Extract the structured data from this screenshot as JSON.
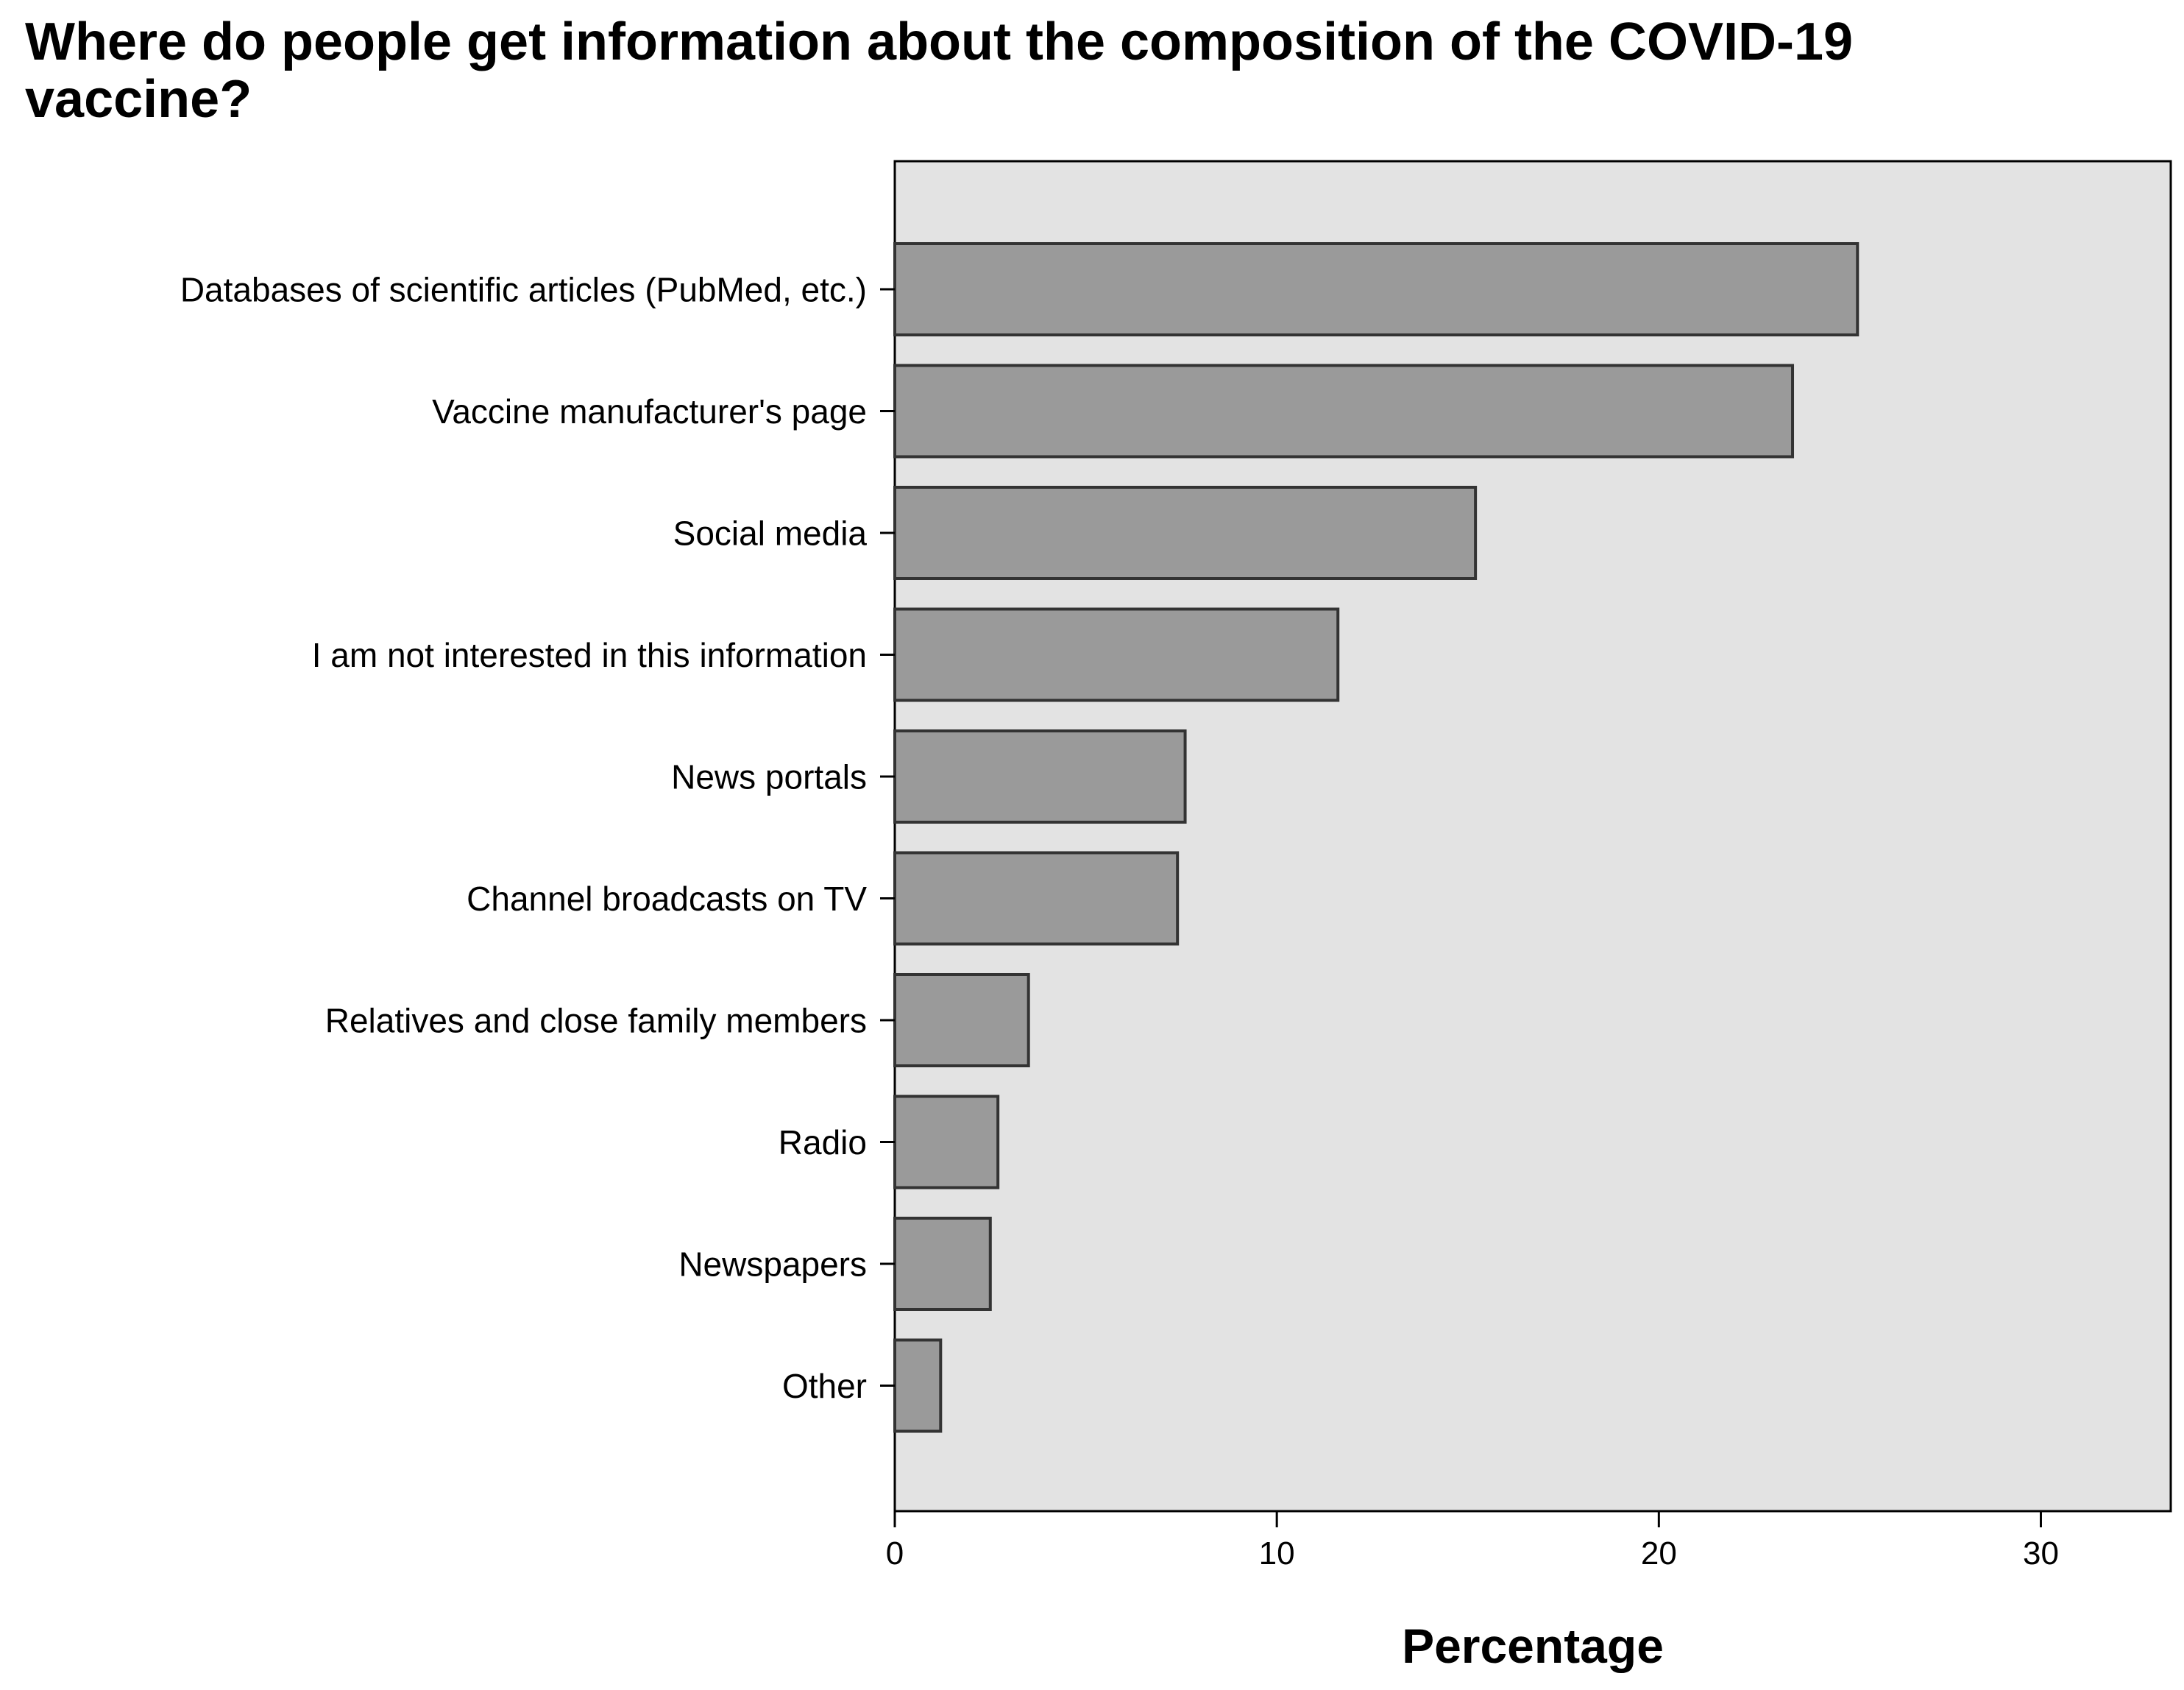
{
  "chart_data": {
    "type": "bar",
    "orientation": "horizontal",
    "title": "Where do people get information about the composition of the COVID-19 vaccine?",
    "xlabel": "Percentage",
    "ylabel": "",
    "categories": [
      "Databases of scientific articles (PubMed, etc.)",
      "Vaccine manufacturer's page",
      "Social media",
      "I am not interested in this information",
      "News portals",
      "Channel broadcasts on TV",
      "Relatives and close family members",
      "Radio",
      "Newspapers",
      "Other"
    ],
    "values": [
      25.2,
      23.5,
      15.2,
      11.6,
      7.6,
      7.4,
      3.5,
      2.7,
      2.5,
      1.2
    ],
    "xlim": [
      0,
      33.4
    ],
    "xticks": [
      0,
      10,
      20,
      30
    ],
    "grid": false,
    "legend": "none",
    "colors": {
      "plot_background": "#e3e3e3",
      "bar_fill": "#9a9a9a",
      "bar_edge": "#333333",
      "axis": "#000000"
    }
  }
}
